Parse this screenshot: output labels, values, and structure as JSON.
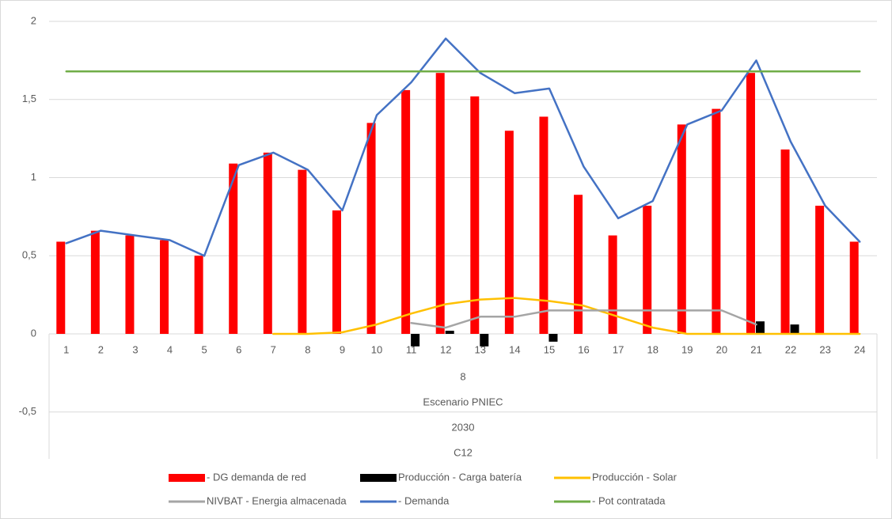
{
  "chart_data": {
    "type": "combo",
    "categories": [
      "1",
      "2",
      "3",
      "4",
      "5",
      "6",
      "7",
      "8",
      "9",
      "10",
      "11",
      "12",
      "13",
      "14",
      "15",
      "16",
      "17",
      "18",
      "19",
      "20",
      "21",
      "22",
      "23",
      "24"
    ],
    "category_groups": [
      "8",
      "Escenario PNIEC",
      "2030",
      "C12"
    ],
    "ylim": [
      -0.8,
      2
    ],
    "yticks": [
      {
        "value": -0.5,
        "label": "-0,5"
      },
      0,
      {
        "value": 0.5,
        "label": "0,5"
      },
      1,
      {
        "value": 1.5,
        "label": "1,5"
      },
      2
    ],
    "grid": true,
    "legend": "bottom",
    "series": [
      {
        "name": "- DG demanda de red",
        "kind": "bar",
        "color": "#ff0000",
        "values": [
          0.59,
          0.66,
          0.63,
          0.6,
          0.5,
          1.09,
          1.16,
          1.05,
          0.79,
          1.35,
          1.56,
          1.67,
          1.52,
          1.3,
          1.39,
          0.89,
          0.63,
          0.82,
          1.34,
          1.44,
          1.67,
          1.18,
          0.82,
          0.59
        ]
      },
      {
        "name": "Producción - Carga batería",
        "kind": "bar",
        "color": "#000000",
        "values": [
          null,
          null,
          null,
          null,
          null,
          null,
          null,
          null,
          null,
          null,
          -0.08,
          0.02,
          -0.08,
          null,
          -0.05,
          null,
          null,
          null,
          null,
          null,
          0.08,
          0.06,
          null,
          null
        ]
      },
      {
        "name": "Producción - Solar",
        "kind": "line",
        "color": "#ffc000",
        "values": [
          null,
          null,
          null,
          null,
          null,
          null,
          0,
          0,
          0.01,
          0.06,
          0.13,
          0.19,
          0.22,
          0.23,
          0.21,
          0.18,
          0.11,
          0.04,
          0,
          0,
          0,
          0,
          0,
          0
        ]
      },
      {
        "name": "NIVBAT - Energia almacenada",
        "kind": "line",
        "color": "#a5a5a5",
        "values": [
          null,
          null,
          null,
          null,
          null,
          null,
          null,
          null,
          null,
          null,
          0.07,
          0.04,
          0.11,
          0.11,
          0.15,
          0.15,
          0.15,
          0.15,
          0.15,
          0.15,
          0.06,
          null,
          null,
          null
        ]
      },
      {
        "name": "- Demanda",
        "kind": "line",
        "color": "#4472c4",
        "values": [
          0.58,
          0.66,
          0.63,
          0.6,
          0.5,
          1.08,
          1.16,
          1.05,
          0.79,
          1.4,
          1.61,
          1.89,
          1.67,
          1.54,
          1.57,
          1.07,
          0.74,
          0.85,
          1.34,
          1.43,
          1.75,
          1.23,
          0.82,
          0.59
        ]
      },
      {
        "name": "- Pot contratada",
        "kind": "line",
        "color": "#70ad47",
        "values": [
          1.68,
          1.68,
          1.68,
          1.68,
          1.68,
          1.68,
          1.68,
          1.68,
          1.68,
          1.68,
          1.68,
          1.68,
          1.68,
          1.68,
          1.68,
          1.68,
          1.68,
          1.68,
          1.68,
          1.68,
          1.68,
          1.68,
          1.68,
          1.68
        ]
      }
    ]
  }
}
